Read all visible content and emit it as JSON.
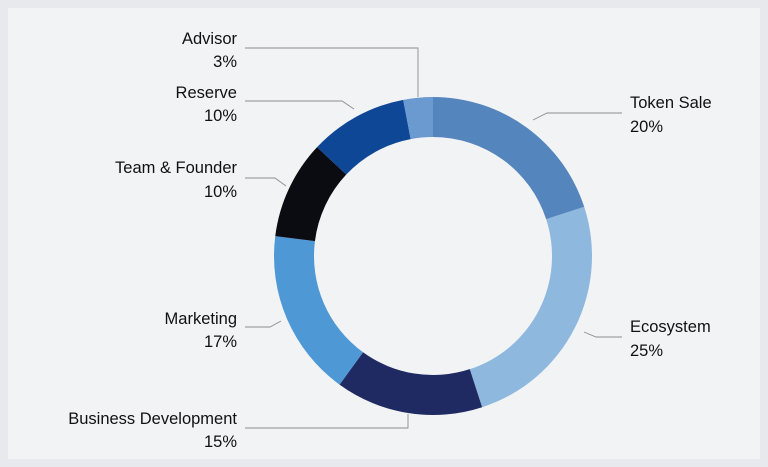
{
  "chart_data": {
    "type": "pie",
    "variant": "donut",
    "title": "",
    "legend": "none",
    "slices": [
      {
        "label": "Token Sale",
        "display": "20%",
        "value": 20,
        "color": "#5585bd"
      },
      {
        "label": "Ecosystem",
        "display": "25%",
        "value": 25,
        "color": "#8fb8df"
      },
      {
        "label": "Business Development",
        "display": "15%",
        "value": 15,
        "color": "#1f2a63"
      },
      {
        "label": "Marketing",
        "display": "17%",
        "value": 17,
        "color": "#4f98d6"
      },
      {
        "label": "Team & Founder",
        "display": "10%",
        "value": 10,
        "color": "#0b0c12"
      },
      {
        "label": "Reserve",
        "display": "10%",
        "value": 10,
        "color": "#0f4797"
      },
      {
        "label": "Advisor",
        "display": "3%",
        "value": 3,
        "color": "#6b9ad1"
      }
    ]
  }
}
